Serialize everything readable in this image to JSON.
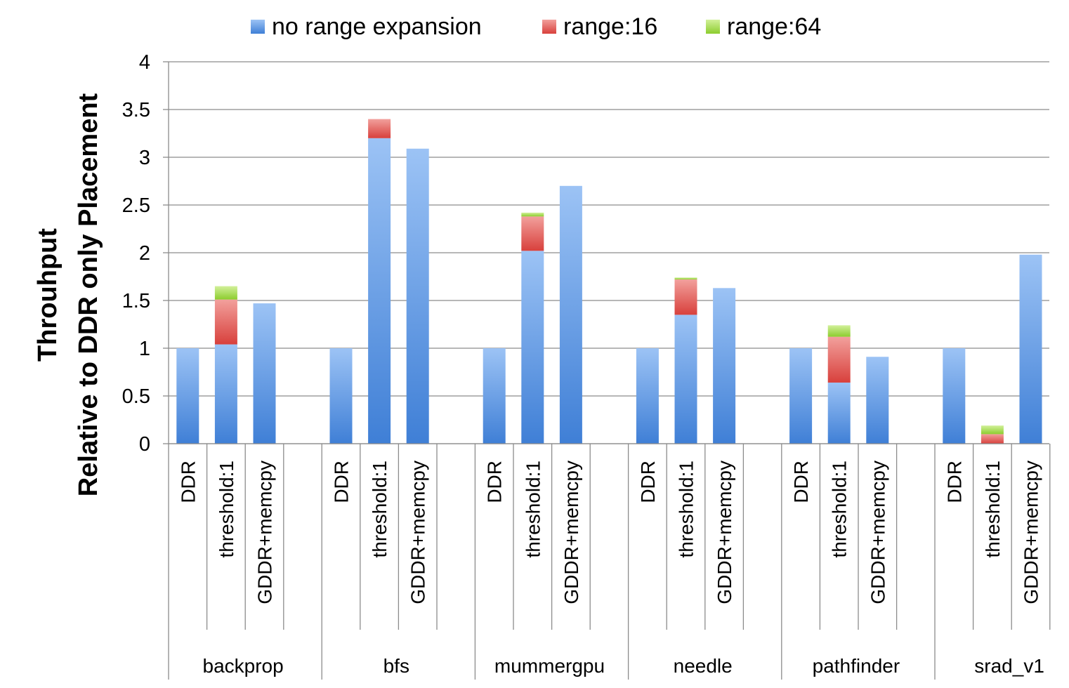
{
  "chart_data": {
    "type": "bar",
    "stacked": true,
    "ylabel_lines": [
      "Throuhput",
      "Relative to DDR only Placement"
    ],
    "ylim": [
      0,
      4
    ],
    "yticks": [
      "0",
      "0.5",
      "1",
      "1.5",
      "2",
      "2.5",
      "3",
      "3.5",
      "4"
    ],
    "grid": true,
    "legend_position": "top",
    "groups": [
      "backprop",
      "bfs",
      "mummergpu",
      "needle",
      "pathfinder",
      "srad_v1"
    ],
    "subcategories": [
      "DDR",
      "threshold:1",
      "GDDR+memcpy"
    ],
    "series": [
      {
        "name": "no range expansion",
        "color": "#4a86d8",
        "values": [
          [
            1.0,
            1.04,
            1.47
          ],
          [
            1.0,
            3.2,
            3.09
          ],
          [
            1.0,
            2.02,
            2.7
          ],
          [
            1.0,
            1.35,
            1.63
          ],
          [
            1.0,
            0.64,
            0.91
          ],
          [
            1.0,
            0.0,
            1.98
          ]
        ]
      },
      {
        "name": "range:16",
        "color": "#e0524f",
        "values": [
          [
            0,
            0.47,
            0
          ],
          [
            0,
            0.2,
            0
          ],
          [
            0,
            0.36,
            0
          ],
          [
            0,
            0.37,
            0
          ],
          [
            0,
            0.48,
            0
          ],
          [
            0,
            0.1,
            0
          ]
        ]
      },
      {
        "name": "range:64",
        "color": "#9bd83f",
        "values": [
          [
            0,
            0.14,
            0
          ],
          [
            0,
            0.0,
            0
          ],
          [
            0,
            0.04,
            0
          ],
          [
            0,
            0.02,
            0
          ],
          [
            0,
            0.12,
            0
          ],
          [
            0,
            0.09,
            0
          ]
        ]
      }
    ]
  }
}
